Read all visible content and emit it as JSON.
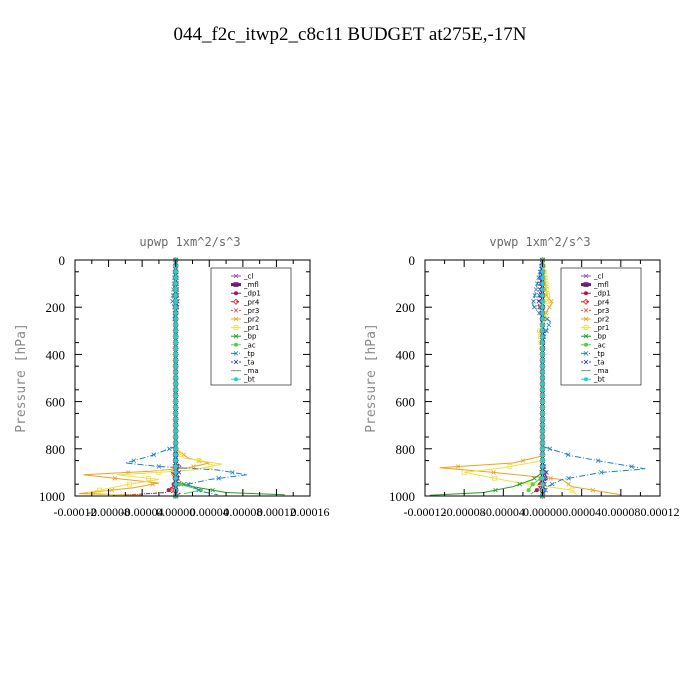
{
  "figure": {
    "title": "044_f2c_itwp2_c8c11  BUDGET at275E,-17N"
  },
  "colors": {
    "cl": "#8a4fd0",
    "mfl": "#6a1e6a",
    "dp1": "#a0204a",
    "pr4": "#d02020",
    "pr3": "#e04848",
    "pr2": "#f0a020",
    "pr1": "#f0e040",
    "bp": "#20a020",
    "ac": "#50d050",
    "tp": "#2080c0",
    "ta": "#3030d0",
    "ma": "#909090",
    "bt": "#20d0d0"
  },
  "chart_data": [
    {
      "type": "line",
      "title": "upwp   1xm^2/s^3",
      "ylabel": "Pressure [hPa]",
      "xlabel": "",
      "xlim": [
        -0.00012,
        0.00016
      ],
      "ylim": [
        1000,
        0
      ],
      "xticks": [
        -0.00012,
        -8e-05,
        -4e-05,
        0,
        4e-05,
        8e-05,
        0.00012,
        0.00016
      ],
      "xtick_labels": [
        "-0.00012",
        "-0.00008",
        "-0.00004",
        "0.00000",
        "0.00004",
        "0.00008",
        "0.00012",
        "0.00016"
      ],
      "yticks": [
        0,
        200,
        400,
        600,
        800,
        1000
      ],
      "ytick_labels": [
        "0",
        "200",
        "400",
        "600",
        "800",
        "1000"
      ],
      "legend_position": "top-right",
      "series": [
        {
          "name": "_cl",
          "key": "cl",
          "points": [
            [
              0.0,
              0
            ],
            [
              0.0,
              200
            ],
            [
              0.0,
              400
            ],
            [
              0.0,
              600
            ],
            [
              0.0,
              800
            ],
            [
              0.0,
              1000
            ]
          ]
        },
        {
          "name": "_mfl",
          "key": "mfl",
          "points": [
            [
              0.0,
              0
            ],
            [
              0.0,
              500
            ],
            [
              0.0,
              1000
            ]
          ]
        },
        {
          "name": "_dp1",
          "key": "dp1",
          "points": [
            [
              0.0,
              0
            ],
            [
              0.0,
              900
            ],
            [
              -3e-06,
              960
            ],
            [
              -1.2e-05,
              985
            ],
            [
              -4.5e-05,
              993
            ],
            [
              -7.5e-05,
              997
            ]
          ]
        },
        {
          "name": "_pr4",
          "key": "pr4",
          "points": [
            [
              0.0,
              0
            ],
            [
              0.0,
              850
            ],
            [
              4e-06,
              880
            ],
            [
              -5e-06,
              910
            ],
            [
              6e-06,
              940
            ],
            [
              -8e-06,
              970
            ],
            [
              5e-06,
              990
            ],
            [
              0.0,
              1000
            ]
          ]
        },
        {
          "name": "_pr3",
          "key": "pr3",
          "points": [
            [
              0.0,
              0
            ],
            [
              0.0,
              860
            ],
            [
              -3e-06,
              900
            ],
            [
              4e-06,
              940
            ],
            [
              -2e-06,
              980
            ],
            [
              0.0,
              1000
            ]
          ]
        },
        {
          "name": "_pr2",
          "key": "pr2",
          "points": [
            [
              0.0,
              0
            ],
            [
              0.0,
              800
            ],
            [
              1.5e-05,
              840
            ],
            [
              4e-05,
              860
            ],
            [
              1.5e-05,
              880
            ],
            [
              -3e-05,
              895
            ],
            [
              -0.00011,
              910
            ],
            [
              -6e-05,
              930
            ],
            [
              -2e-05,
              945
            ],
            [
              -5e-05,
              965
            ],
            [
              -0.000115,
              990
            ],
            [
              -4e-05,
              997
            ]
          ]
        },
        {
          "name": "_pr1",
          "key": "pr1",
          "points": [
            [
              0.0,
              0
            ],
            [
              0.0,
              800
            ],
            [
              1e-05,
              840
            ],
            [
              5.5e-05,
              865
            ],
            [
              2e-05,
              890
            ],
            [
              -2e-05,
              900
            ],
            [
              -7e-05,
              910
            ],
            [
              -2e-05,
              930
            ],
            [
              -5.5e-05,
              950
            ],
            [
              -0.000105,
              985
            ],
            [
              -6e-05,
              998
            ]
          ]
        },
        {
          "name": "_bp",
          "key": "bp",
          "points": [
            [
              0.0,
              0
            ],
            [
              0.0,
              940
            ],
            [
              2e-05,
              960
            ],
            [
              6e-05,
              985
            ],
            [
              0.00013,
              995
            ]
          ]
        },
        {
          "name": "_ac",
          "key": "ac",
          "points": [
            [
              0.0,
              0
            ],
            [
              0.0,
              945
            ],
            [
              1.5e-05,
              960
            ],
            [
              3e-05,
              975
            ],
            [
              1e-05,
              990
            ]
          ]
        },
        {
          "name": "_tp",
          "key": "tp",
          "points": [
            [
              0.0,
              0
            ],
            [
              -4e-06,
              185
            ],
            [
              0.0,
              210
            ],
            [
              -2e-06,
              240
            ],
            [
              0.0,
              270
            ],
            [
              0.0,
              790
            ],
            [
              -3e-05,
              830
            ],
            [
              -6e-05,
              860
            ],
            [
              -2e-05,
              875
            ],
            [
              5e-05,
              890
            ],
            [
              8.5e-05,
              910
            ],
            [
              4e-05,
              930
            ],
            [
              1.5e-05,
              950
            ],
            [
              3e-05,
              980
            ],
            [
              5e-05,
              995
            ]
          ]
        },
        {
          "name": "_ta",
          "key": "ta",
          "points": [
            [
              0.0,
              0
            ],
            [
              2e-06,
              185
            ],
            [
              0.0,
              240
            ],
            [
              0.0,
              860
            ],
            [
              4e-06,
              900
            ],
            [
              0.0,
              960
            ],
            [
              0.0,
              1000
            ]
          ]
        },
        {
          "name": "_ma",
          "key": "ma",
          "points": [
            [
              0.0,
              0
            ],
            [
              0.0,
              1000
            ]
          ]
        },
        {
          "name": "_bt",
          "key": "bt",
          "points": [
            [
              0.0,
              0
            ],
            [
              0.0,
              1000
            ]
          ]
        }
      ]
    },
    {
      "type": "line",
      "title": "vpwp   1xm^2/s^3",
      "ylabel": "Pressure [hPa]",
      "xlabel": "",
      "xlim": [
        -0.00012,
        0.00012
      ],
      "ylim": [
        1000,
        0
      ],
      "xticks": [
        -0.00012,
        -8e-05,
        -4e-05,
        0,
        4e-05,
        8e-05,
        0.00012
      ],
      "xtick_labels": [
        "-0.00012",
        "-0.00008",
        "-0.00004",
        "0.00000",
        "0.00004",
        "0.00008",
        "0.00012"
      ],
      "yticks": [
        0,
        200,
        400,
        600,
        800,
        1000
      ],
      "ytick_labels": [
        "0",
        "200",
        "400",
        "600",
        "800",
        "1000"
      ],
      "legend_position": "top-right",
      "series": [
        {
          "name": "_cl",
          "key": "cl",
          "points": [
            [
              0.0,
              0
            ],
            [
              0.0,
              500
            ],
            [
              0.0,
              1000
            ]
          ]
        },
        {
          "name": "_mfl",
          "key": "mfl",
          "points": [
            [
              0.0,
              0
            ],
            [
              0.0,
              500
            ],
            [
              0.0,
              1000
            ]
          ]
        },
        {
          "name": "_dp1",
          "key": "dp1",
          "points": [
            [
              0.0,
              0
            ],
            [
              0.0,
              920
            ],
            [
              -4e-06,
              970
            ],
            [
              -1.2e-05,
              992
            ]
          ]
        },
        {
          "name": "_pr4",
          "key": "pr4",
          "points": [
            [
              0.0,
              0
            ],
            [
              0.0,
              880
            ],
            [
              4e-06,
              920
            ],
            [
              -4e-06,
              960
            ],
            [
              3e-06,
              990
            ],
            [
              0.0,
              1000
            ]
          ]
        },
        {
          "name": "_pr3",
          "key": "pr3",
          "points": [
            [
              0.0,
              0
            ],
            [
              0.0,
              880
            ],
            [
              -3e-06,
              930
            ],
            [
              2e-06,
              980
            ],
            [
              0.0,
              1000
            ]
          ]
        },
        {
          "name": "_pr2",
          "key": "pr2",
          "points": [
            [
              0.0,
              0
            ],
            [
              4e-06,
              150
            ],
            [
              1e-05,
              180
            ],
            [
              4e-06,
              220
            ],
            [
              0.0,
              270
            ],
            [
              0.0,
              830
            ],
            [
              -3e-05,
              860
            ],
            [
              -0.000105,
              880
            ],
            [
              -5e-05,
              900
            ],
            [
              2e-05,
              930
            ],
            [
              3e-05,
              960
            ],
            [
              8e-05,
              995
            ]
          ]
        },
        {
          "name": "_pr1",
          "key": "pr1",
          "points": [
            [
              0.0,
              0
            ],
            [
              6e-06,
              170
            ],
            [
              -4e-06,
              200
            ],
            [
              4e-06,
              240
            ],
            [
              -3e-06,
              300
            ],
            [
              0.0,
              400
            ],
            [
              0.0,
              850
            ],
            [
              -4e-05,
              880
            ],
            [
              -8e-05,
              900
            ],
            [
              -3e-05,
              940
            ],
            [
              3e-05,
              975
            ],
            [
              3.5e-05,
              995
            ]
          ]
        },
        {
          "name": "_bp",
          "key": "bp",
          "points": [
            [
              0.0,
              0
            ],
            [
              0.0,
              900
            ],
            [
              -1e-05,
              930
            ],
            [
              -3e-05,
              960
            ],
            [
              -6e-05,
              985
            ],
            [
              -0.000115,
              997
            ]
          ]
        },
        {
          "name": "_ac",
          "key": "ac",
          "points": [
            [
              0.0,
              0
            ],
            [
              0.0,
              920
            ],
            [
              -1e-05,
              950
            ],
            [
              -1.5e-05,
              980
            ]
          ]
        },
        {
          "name": "_tp",
          "key": "tp",
          "points": [
            [
              0.0,
              0
            ],
            [
              -1e-05,
              190
            ],
            [
              -5e-06,
              220
            ],
            [
              8e-06,
              260
            ],
            [
              4e-06,
              300
            ],
            [
              0.0,
              340
            ],
            [
              0.0,
              790
            ],
            [
              3e-05,
              830
            ],
            [
              7e-05,
              860
            ],
            [
              0.000105,
              885
            ],
            [
              6e-05,
              900
            ],
            [
              2e-05,
              930
            ],
            [
              5e-06,
              960
            ],
            [
              0.0,
              1000
            ]
          ]
        },
        {
          "name": "_ta",
          "key": "ta",
          "points": [
            [
              0.0,
              0
            ],
            [
              -4e-06,
              185
            ],
            [
              0.0,
              240
            ],
            [
              0.0,
              860
            ],
            [
              4e-06,
              900
            ],
            [
              0.0,
              1000
            ]
          ]
        },
        {
          "name": "_ma",
          "key": "ma",
          "points": [
            [
              0.0,
              0
            ],
            [
              0.0,
              1000
            ]
          ]
        },
        {
          "name": "_bt",
          "key": "bt",
          "points": [
            [
              0.0,
              0
            ],
            [
              0.0,
              1000
            ]
          ]
        }
      ]
    }
  ]
}
